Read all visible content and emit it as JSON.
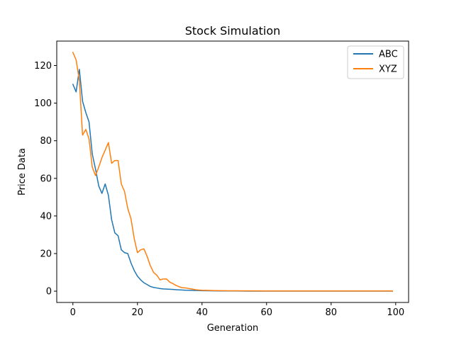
{
  "chart_data": {
    "type": "line",
    "title": "Stock Simulation",
    "xlabel": "Generation",
    "ylabel": "Price Data",
    "xlim": [
      -5,
      104
    ],
    "ylim": [
      -6,
      133
    ],
    "xticks": [
      0,
      20,
      40,
      60,
      80,
      100
    ],
    "yticks": [
      0,
      20,
      40,
      60,
      80,
      100,
      120
    ],
    "grid": false,
    "legend_position": "top-right",
    "series": [
      {
        "name": "ABC",
        "color": "#1f77b4",
        "x": [
          0,
          1,
          2,
          3,
          4,
          5,
          6,
          7,
          8,
          9,
          10,
          11,
          12,
          13,
          14,
          15,
          16,
          17,
          18,
          19,
          20,
          21,
          22,
          23,
          24,
          25,
          26,
          27,
          28,
          29,
          30,
          31,
          32,
          33,
          34,
          35,
          36,
          37,
          38,
          39,
          40,
          42,
          44,
          46,
          48,
          50,
          55,
          60,
          70,
          80,
          90,
          99
        ],
        "y": [
          110,
          106,
          118,
          101,
          95,
          90,
          73,
          65,
          56,
          52,
          57,
          51,
          38,
          31,
          29.5,
          22,
          20.5,
          20,
          15,
          11,
          8,
          6,
          4.5,
          3.5,
          2.5,
          2,
          1.7,
          1.4,
          1.2,
          1.1,
          1.0,
          0.9,
          0.8,
          0.7,
          0.6,
          0.5,
          0.45,
          0.4,
          0.35,
          0.3,
          0.25,
          0.2,
          0.15,
          0.1,
          0.1,
          0.1,
          0.05,
          0.05,
          0.05,
          0.05,
          0.05,
          0.05
        ]
      },
      {
        "name": "XYZ",
        "color": "#ff7f0e",
        "x": [
          0,
          1,
          2,
          3,
          4,
          5,
          6,
          7,
          8,
          9,
          10,
          11,
          12,
          13,
          14,
          15,
          16,
          17,
          18,
          19,
          20,
          21,
          22,
          23,
          24,
          25,
          26,
          27,
          28,
          29,
          30,
          31,
          32,
          33,
          34,
          35,
          36,
          37,
          38,
          39,
          40,
          42,
          44,
          46,
          48,
          50,
          55,
          60,
          70,
          80,
          90,
          99
        ],
        "y": [
          127,
          123,
          112,
          83,
          86,
          81,
          66,
          61.5,
          66,
          71,
          75,
          79,
          68,
          69.5,
          69.5,
          57,
          53,
          44,
          38.5,
          28,
          20.5,
          22,
          22.5,
          18.5,
          13.5,
          10,
          8.5,
          6,
          6.5,
          6.5,
          4.8,
          4,
          3,
          2.3,
          1.8,
          1.7,
          1.4,
          1.1,
          0.8,
          0.6,
          0.5,
          0.4,
          0.3,
          0.25,
          0.2,
          0.2,
          0.15,
          0.1,
          0.1,
          0.1,
          0.1,
          0.1
        ]
      }
    ]
  }
}
